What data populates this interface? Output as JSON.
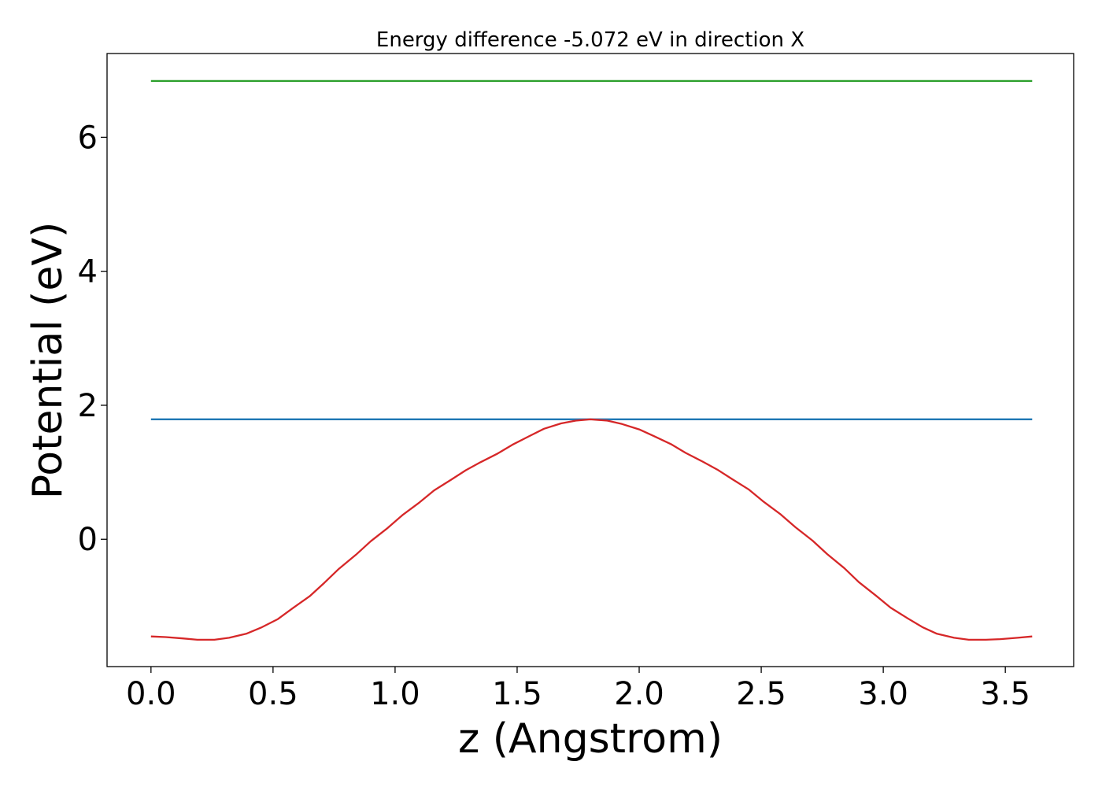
{
  "chart_data": {
    "type": "line",
    "title": "Energy difference -5.072 eV in direction X",
    "xlabel": "z (Angstrom)",
    "ylabel": "Potential (eV)",
    "xlim": [
      -0.18,
      3.78
    ],
    "ylim": [
      -1.9,
      7.25
    ],
    "xticks": [
      0.0,
      0.5,
      1.0,
      1.5,
      2.0,
      2.5,
      3.0,
      3.5
    ],
    "xtick_labels": [
      "0.0",
      "0.5",
      "1.0",
      "1.5",
      "2.0",
      "2.5",
      "3.0",
      "3.5"
    ],
    "yticks": [
      0,
      2,
      4,
      6
    ],
    "ytick_labels": [
      "0",
      "2",
      "4",
      "6"
    ],
    "grid": false,
    "series": [
      {
        "color": "#2ca02c",
        "x": [
          0.0,
          3.61
        ],
        "y": [
          6.84,
          6.84
        ]
      },
      {
        "color": "#1f77b4",
        "x": [
          0.0,
          3.61
        ],
        "y": [
          1.79,
          1.79
        ]
      },
      {
        "color": "#d62728",
        "x": [
          0.0,
          0.06,
          0.13,
          0.19,
          0.26,
          0.32,
          0.39,
          0.45,
          0.52,
          0.58,
          0.65,
          0.71,
          0.77,
          0.84,
          0.9,
          0.97,
          1.03,
          1.1,
          1.16,
          1.23,
          1.29,
          1.35,
          1.42,
          1.48,
          1.55,
          1.61,
          1.68,
          1.74,
          1.8,
          1.87,
          1.93,
          2.0,
          2.06,
          2.13,
          2.19,
          2.26,
          2.32,
          2.38,
          2.45,
          2.51,
          2.58,
          2.64,
          2.71,
          2.77,
          2.84,
          2.9,
          2.97,
          3.03,
          3.1,
          3.16,
          3.22,
          3.29,
          3.35,
          3.42,
          3.48,
          3.55,
          3.61
        ],
        "y": [
          -1.45,
          -1.46,
          -1.48,
          -1.5,
          -1.5,
          -1.47,
          -1.41,
          -1.32,
          -1.19,
          -1.03,
          -0.85,
          -0.65,
          -0.44,
          -0.23,
          -0.03,
          0.17,
          0.36,
          0.55,
          0.73,
          0.89,
          1.03,
          1.15,
          1.28,
          1.41,
          1.54,
          1.65,
          1.73,
          1.77,
          1.79,
          1.77,
          1.72,
          1.64,
          1.54,
          1.42,
          1.29,
          1.16,
          1.04,
          0.9,
          0.74,
          0.56,
          0.37,
          0.18,
          -0.02,
          -0.22,
          -0.43,
          -0.64,
          -0.84,
          -1.02,
          -1.18,
          -1.31,
          -1.41,
          -1.47,
          -1.5,
          -1.5,
          -1.49,
          -1.47,
          -1.45
        ]
      }
    ]
  }
}
